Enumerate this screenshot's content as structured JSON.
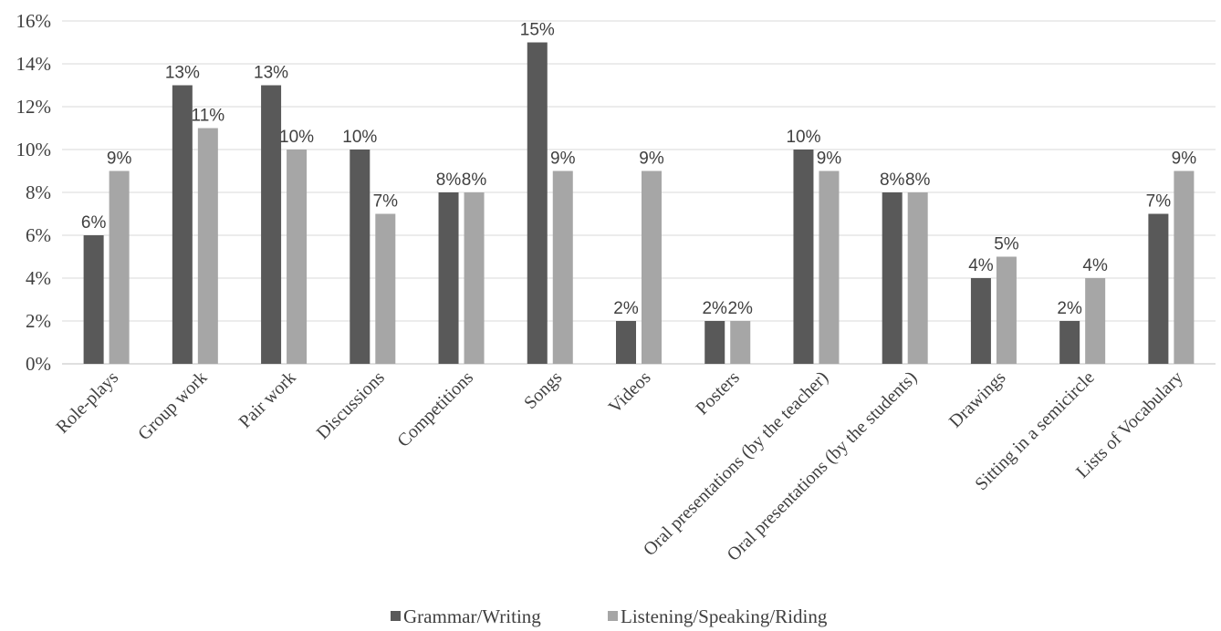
{
  "chart_data": {
    "type": "bar",
    "categories": [
      "Role-plays",
      "Group work",
      "Pair work",
      "Discussions",
      "Competitions",
      "Songs",
      "Videos",
      "Posters",
      "Oral presentations (by the teacher)",
      "Oral presentations (by the students)",
      "Drawings",
      "Sitting in a semicircle",
      "Lists of Vocabulary"
    ],
    "series": [
      {
        "name": "Grammar/Writing",
        "color": "#595959",
        "values": [
          6,
          13,
          13,
          10,
          8,
          15,
          2,
          2,
          10,
          8,
          4,
          2,
          7
        ],
        "labels": [
          "6%",
          "13%",
          "13%",
          "10%",
          "8%",
          "15%",
          "2%",
          "2%",
          "10%",
          "8%",
          "4%",
          "2%",
          "7%"
        ]
      },
      {
        "name": "Listening/Speaking/Riding",
        "color": "#a6a6a6",
        "values": [
          9,
          11,
          10,
          7,
          8,
          9,
          9,
          2,
          9,
          8,
          5,
          4,
          9
        ],
        "labels": [
          "9%",
          "11%",
          "10%",
          "7%",
          "8%",
          "9%",
          "9%",
          "2%",
          "9%",
          "8%",
          "5%",
          "4%",
          "9%"
        ]
      }
    ],
    "ylim": [
      0,
      16
    ],
    "yticks": [
      "0%",
      "2%",
      "4%",
      "6%",
      "8%",
      "10%",
      "12%",
      "14%",
      "16%"
    ],
    "grid": true,
    "legend_position": "bottom",
    "gridline_color": "#d9d9d9"
  }
}
